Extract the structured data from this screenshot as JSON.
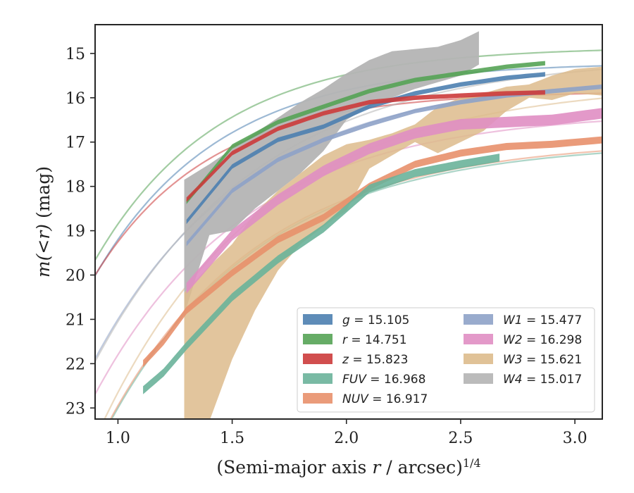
{
  "chart_data": {
    "type": "line",
    "xlabel_main": "(Semi-major axis ",
    "xlabel_var": "r",
    "xlabel_tail": " / arcsec)",
    "xlabel_exp": "1/4",
    "ylabel_main": "m(<r)",
    "ylabel_unit": " (mag)",
    "xlim": [
      0.9,
      3.12
    ],
    "ylim": [
      23.25,
      14.35
    ],
    "y_inverted": true,
    "xticks": [
      "1.0",
      "1.5",
      "2.0",
      "2.5",
      "3.0"
    ],
    "yticks": [
      "15",
      "16",
      "17",
      "18",
      "19",
      "20",
      "21",
      "22",
      "23"
    ],
    "grid": false,
    "legend_position": "lower-right",
    "series": [
      {
        "key": "g",
        "name": "g = 15.105",
        "color": "#4c7fb0",
        "data_x": [
          1.3,
          1.5,
          1.7,
          1.9,
          2.1,
          2.3,
          2.5,
          2.7,
          2.87
        ],
        "data_y": [
          18.8,
          17.55,
          16.95,
          16.65,
          16.2,
          15.9,
          15.7,
          15.55,
          15.47
        ],
        "band_width": 0.05,
        "model": {
          "a": 15.2,
          "b": 4.0,
          "c": 1.85,
          "xmin": 0.9
        }
      },
      {
        "key": "r",
        "name": "r = 14.751",
        "color": "#55a355",
        "data_x": [
          1.3,
          1.5,
          1.7,
          1.9,
          2.1,
          2.3,
          2.5,
          2.7,
          2.87
        ],
        "data_y": [
          18.35,
          17.1,
          16.55,
          16.2,
          15.85,
          15.6,
          15.45,
          15.3,
          15.22
        ],
        "band_width": 0.05,
        "model": {
          "a": 14.85,
          "b": 4.0,
          "c": 1.85,
          "xmin": 0.9
        }
      },
      {
        "key": "z",
        "name": "z = 15.823",
        "color": "#cc3b3b",
        "data_x": [
          1.3,
          1.5,
          1.7,
          1.9,
          2.1,
          2.3,
          2.5,
          2.7,
          2.87
        ],
        "data_y": [
          18.3,
          17.25,
          16.7,
          16.35,
          16.1,
          16.0,
          15.95,
          15.9,
          15.88
        ],
        "band_width": 0.05,
        "model": {
          "a": 15.85,
          "b": 3.4,
          "c": 2.0,
          "xmin": 0.9
        }
      },
      {
        "key": "FUV",
        "name": "FUV = 16.968",
        "color": "#6ab39a",
        "data_x": [
          1.11,
          1.2,
          1.3,
          1.5,
          1.7,
          1.9,
          2.1,
          2.3,
          2.5,
          2.67
        ],
        "data_y": [
          22.6,
          22.2,
          21.6,
          20.5,
          19.65,
          18.95,
          18.05,
          17.7,
          17.5,
          17.35
        ],
        "band_width": 0.09,
        "model": {
          "a": 17.0,
          "b": 6.0,
          "c": 1.5,
          "xmin": 0.9
        }
      },
      {
        "key": "NUV",
        "name": "NUV = 16.917",
        "color": "#e8906c",
        "data_x": [
          1.11,
          1.2,
          1.3,
          1.5,
          1.7,
          1.9,
          2.1,
          2.3,
          2.5,
          2.7,
          2.9,
          3.12
        ],
        "data_y": [
          22.0,
          21.5,
          20.8,
          19.95,
          19.2,
          18.7,
          18.0,
          17.5,
          17.25,
          17.1,
          17.05,
          16.95
        ],
        "band_width": 0.08,
        "model": {
          "a": 16.95,
          "b": 6.0,
          "c": 1.5,
          "xmin": 0.9
        }
      },
      {
        "key": "W1",
        "name": "W1 = 15.477",
        "color": "#8ea2c8",
        "data_x": [
          1.3,
          1.5,
          1.7,
          1.9,
          2.1,
          2.3,
          2.5,
          2.7,
          2.9,
          3.12
        ],
        "data_y": [
          19.3,
          18.1,
          17.4,
          16.95,
          16.6,
          16.3,
          16.1,
          15.95,
          15.85,
          15.75
        ],
        "band_width": 0.05,
        "model": {
          "a": 15.5,
          "b": 5.5,
          "c": 1.5,
          "xmin": 0.9
        }
      },
      {
        "key": "W2",
        "name": "W2 = 16.298",
        "color": "#e08ec3",
        "data_x": [
          1.3,
          1.5,
          1.7,
          1.9,
          2.1,
          2.3,
          2.5,
          2.7,
          2.9,
          3.12
        ],
        "data_y": [
          20.3,
          19.1,
          18.3,
          17.65,
          17.15,
          16.8,
          16.6,
          16.55,
          16.5,
          16.35
        ],
        "band_width": 0.12,
        "model": {
          "a": 16.3,
          "b": 5.5,
          "c": 1.5,
          "xmin": 0.9
        }
      },
      {
        "key": "W3",
        "name": "W3 = 15.621",
        "color": "#ddbb8c",
        "data_x": [
          1.29,
          1.4,
          1.5,
          1.6,
          1.7,
          1.8,
          1.9,
          2.0,
          2.1,
          2.2,
          2.3,
          2.4,
          2.5,
          2.6,
          2.7,
          2.8,
          2.9,
          3.0,
          3.12
        ],
        "data_upper": [
          20.4,
          19.8,
          19.3,
          18.6,
          18.1,
          17.7,
          17.3,
          17.05,
          16.95,
          16.8,
          16.6,
          16.2,
          16.0,
          15.9,
          15.75,
          15.7,
          15.5,
          15.35,
          15.3
        ],
        "data_lower": [
          23.3,
          23.3,
          21.9,
          20.8,
          19.9,
          19.3,
          18.9,
          18.55,
          17.6,
          17.3,
          17.0,
          17.25,
          17.0,
          16.75,
          16.3,
          16.0,
          16.05,
          15.9,
          15.95
        ],
        "model": {
          "a": 15.65,
          "b": 7.0,
          "c": 1.4,
          "xmin": 0.9
        }
      },
      {
        "key": "W4",
        "name": "W4 = 15.017",
        "color": "#b4b4b4",
        "data_x": [
          1.29,
          1.4,
          1.5,
          1.6,
          1.7,
          1.8,
          1.9,
          2.0,
          2.1,
          2.2,
          2.3,
          2.4,
          2.5,
          2.58
        ],
        "data_upper": [
          17.85,
          17.5,
          17.15,
          16.8,
          16.45,
          16.1,
          15.8,
          15.45,
          15.15,
          14.95,
          14.9,
          14.85,
          14.7,
          14.5
        ],
        "data_lower": [
          20.9,
          19.1,
          19.0,
          18.5,
          18.1,
          17.7,
          17.2,
          16.5,
          16.2,
          16.0,
          15.8,
          15.65,
          15.5,
          15.25
        ],
        "model": {
          "a": 15.05,
          "b": 6.0,
          "c": 1.4,
          "xmin": 0.9
        }
      }
    ]
  }
}
